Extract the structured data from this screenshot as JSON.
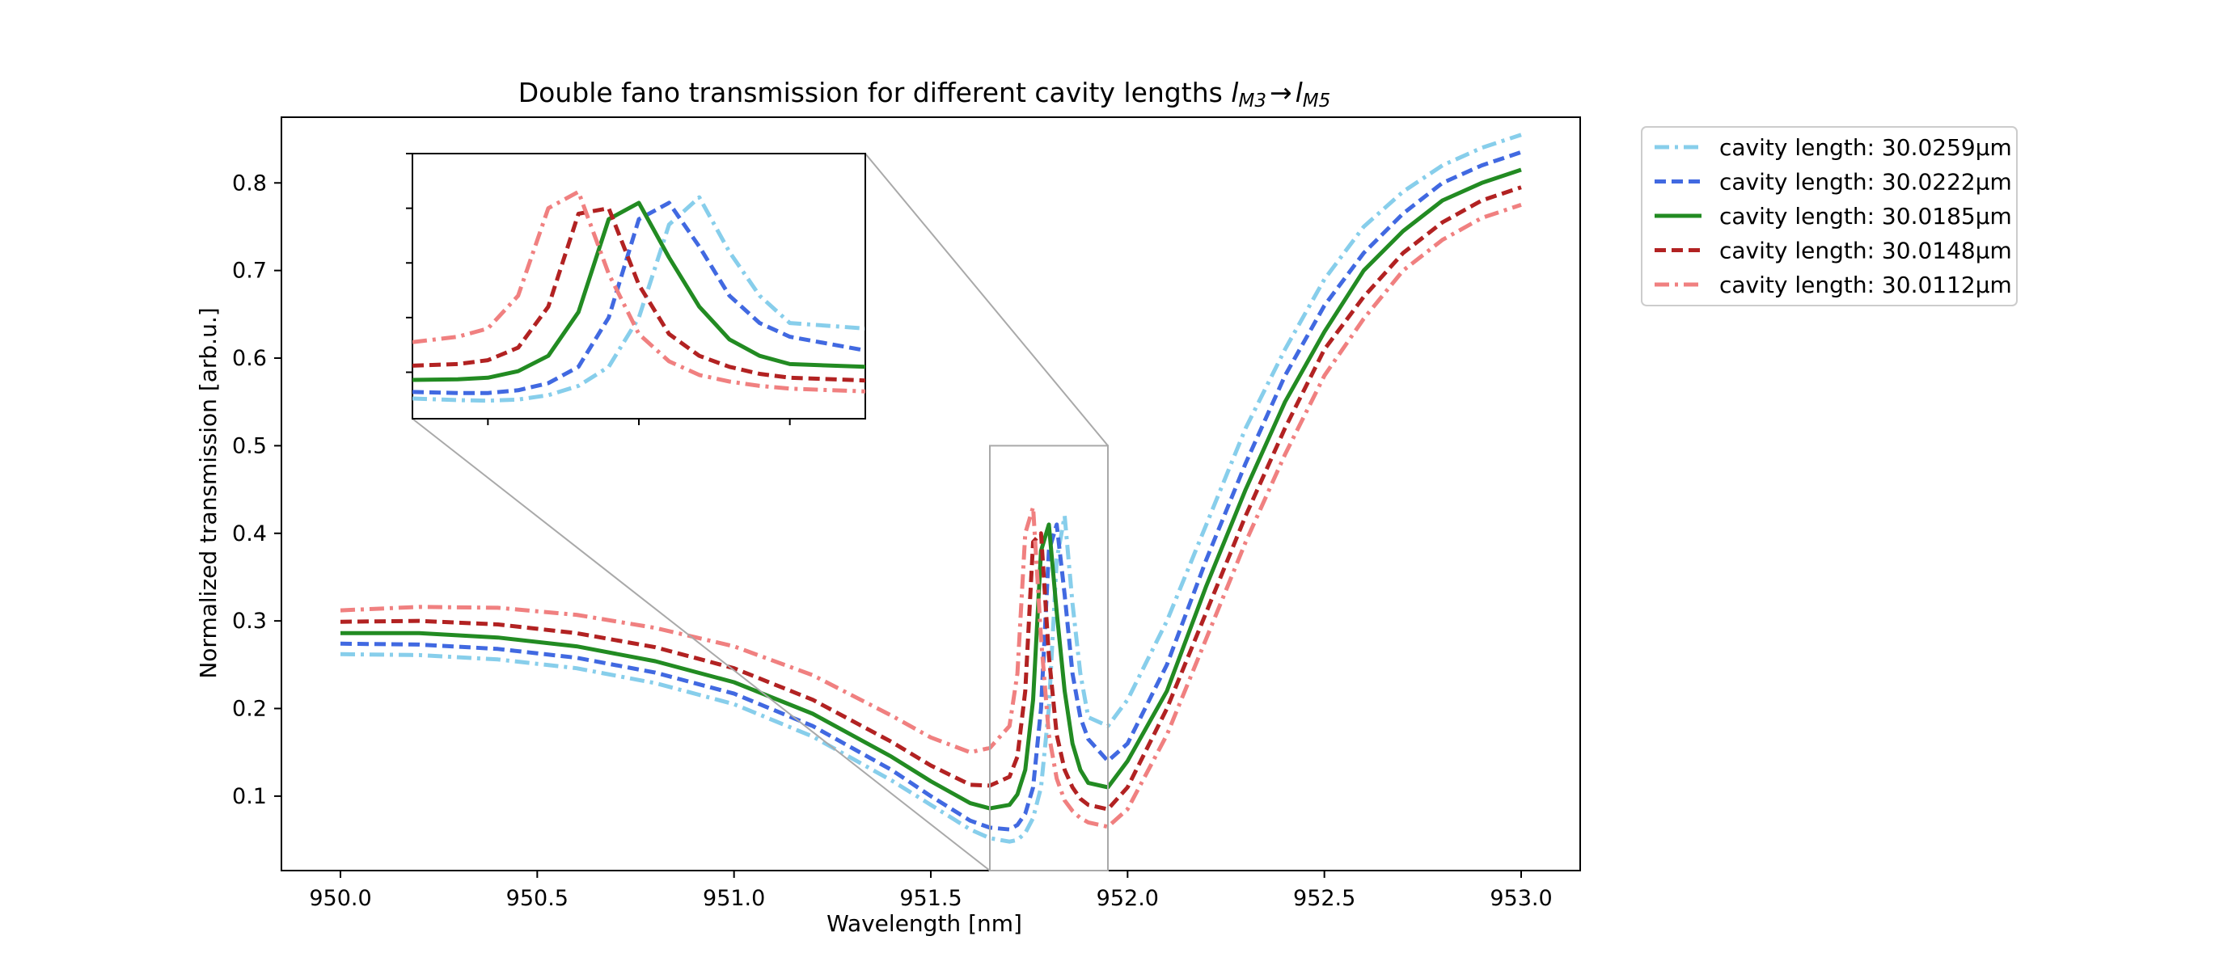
{
  "chart_data": {
    "type": "line",
    "title": "Double fano transmission for different cavity lengths ",
    "title_math": {
      "from_base": "l",
      "from_sub": "M3",
      "arrow": "→",
      "to_base": "l",
      "to_sub": "M5"
    },
    "xlabel": "Wavelength [nm]",
    "ylabel": "Normalized transmission [arb.u.]",
    "xlim": [
      949.85,
      953.15
    ],
    "ylim": [
      0.015,
      0.875
    ],
    "xticks": [
      950.0,
      950.5,
      951.0,
      951.5,
      952.0,
      952.5,
      953.0
    ],
    "xtick_labels": [
      "950.0",
      "950.5",
      "951.0",
      "951.5",
      "952.0",
      "952.5",
      "953.0"
    ],
    "yticks": [
      0.1,
      0.2,
      0.3,
      0.4,
      0.5,
      0.6,
      0.7,
      0.8
    ],
    "ytick_labels": [
      "0.1",
      "0.2",
      "0.3",
      "0.4",
      "0.5",
      "0.6",
      "0.7",
      "0.8"
    ],
    "grid": false,
    "legend_placement": "outside-upper-right",
    "x": [
      950.0,
      950.2,
      950.4,
      950.6,
      950.8,
      951.0,
      951.2,
      951.4,
      951.5,
      951.6,
      951.65,
      951.7,
      951.72,
      951.74,
      951.76,
      951.78,
      951.8,
      951.82,
      951.84,
      951.86,
      951.88,
      951.9,
      951.95,
      952.0,
      952.1,
      952.2,
      952.3,
      952.4,
      952.5,
      952.6,
      952.7,
      952.8,
      952.9,
      953.0
    ],
    "series": [
      {
        "name": "cavity length: 30.0259µm",
        "color": "#87ceeb",
        "dash": "dashdot",
        "values": [
          0.262,
          0.261,
          0.256,
          0.246,
          0.229,
          0.205,
          0.168,
          0.118,
          0.09,
          0.062,
          0.052,
          0.048,
          0.05,
          0.058,
          0.075,
          0.11,
          0.2,
          0.37,
          0.42,
          0.32,
          0.24,
          0.19,
          0.18,
          0.21,
          0.3,
          0.41,
          0.52,
          0.61,
          0.69,
          0.75,
          0.79,
          0.82,
          0.84,
          0.855
        ]
      },
      {
        "name": "cavity length: 30.0222µm",
        "color": "#4169e1",
        "dash": "dashed",
        "values": [
          0.274,
          0.273,
          0.268,
          0.258,
          0.241,
          0.217,
          0.18,
          0.13,
          0.1,
          0.072,
          0.064,
          0.062,
          0.067,
          0.08,
          0.11,
          0.2,
          0.38,
          0.41,
          0.33,
          0.24,
          0.19,
          0.165,
          0.14,
          0.16,
          0.25,
          0.37,
          0.48,
          0.58,
          0.66,
          0.72,
          0.765,
          0.8,
          0.82,
          0.835
        ]
      },
      {
        "name": "cavity length: 30.0185µm",
        "color": "#228b22",
        "dash": "solid",
        "values": [
          0.286,
          0.286,
          0.281,
          0.271,
          0.254,
          0.23,
          0.194,
          0.145,
          0.117,
          0.092,
          0.086,
          0.09,
          0.102,
          0.13,
          0.21,
          0.38,
          0.41,
          0.31,
          0.22,
          0.16,
          0.13,
          0.115,
          0.11,
          0.14,
          0.22,
          0.34,
          0.45,
          0.55,
          0.63,
          0.7,
          0.745,
          0.78,
          0.8,
          0.815
        ]
      },
      {
        "name": "cavity length: 30.0148µm",
        "color": "#b22222",
        "dash": "dashed",
        "values": [
          0.299,
          0.3,
          0.296,
          0.286,
          0.27,
          0.246,
          0.21,
          0.162,
          0.135,
          0.113,
          0.112,
          0.122,
          0.145,
          0.22,
          0.39,
          0.4,
          0.26,
          0.17,
          0.13,
          0.11,
          0.097,
          0.09,
          0.085,
          0.11,
          0.2,
          0.31,
          0.42,
          0.52,
          0.61,
          0.67,
          0.72,
          0.755,
          0.78,
          0.795
        ]
      },
      {
        "name": "cavity length: 30.0112µm",
        "color": "#f08080",
        "dash": "dashdot",
        "values": [
          0.312,
          0.316,
          0.315,
          0.307,
          0.292,
          0.271,
          0.238,
          0.192,
          0.167,
          0.15,
          0.155,
          0.18,
          0.24,
          0.4,
          0.43,
          0.28,
          0.17,
          0.12,
          0.095,
          0.083,
          0.075,
          0.07,
          0.065,
          0.085,
          0.17,
          0.28,
          0.39,
          0.49,
          0.58,
          0.645,
          0.7,
          0.735,
          0.76,
          0.775
        ]
      }
    ],
    "inset": {
      "xlim": [
        951.65,
        951.95
      ],
      "ylim": [
        0.015,
        0.5
      ],
      "x": [
        951.65,
        951.68,
        951.7,
        951.72,
        951.74,
        951.76,
        951.78,
        951.8,
        951.82,
        951.84,
        951.86,
        951.88,
        951.9,
        951.95
      ],
      "series": [
        {
          "values": [
            0.052,
            0.049,
            0.048,
            0.05,
            0.058,
            0.075,
            0.11,
            0.2,
            0.37,
            0.42,
            0.32,
            0.24,
            0.19,
            0.18
          ]
        },
        {
          "values": [
            0.064,
            0.062,
            0.062,
            0.067,
            0.08,
            0.11,
            0.2,
            0.38,
            0.41,
            0.33,
            0.24,
            0.19,
            0.165,
            0.14
          ]
        },
        {
          "values": [
            0.086,
            0.087,
            0.09,
            0.102,
            0.13,
            0.21,
            0.38,
            0.41,
            0.31,
            0.22,
            0.16,
            0.13,
            0.115,
            0.11
          ]
        },
        {
          "values": [
            0.112,
            0.115,
            0.122,
            0.145,
            0.22,
            0.39,
            0.4,
            0.26,
            0.17,
            0.13,
            0.11,
            0.097,
            0.09,
            0.085
          ]
        },
        {
          "values": [
            0.155,
            0.165,
            0.18,
            0.24,
            0.4,
            0.43,
            0.28,
            0.17,
            0.12,
            0.095,
            0.083,
            0.075,
            0.07,
            0.065
          ]
        }
      ]
    }
  }
}
